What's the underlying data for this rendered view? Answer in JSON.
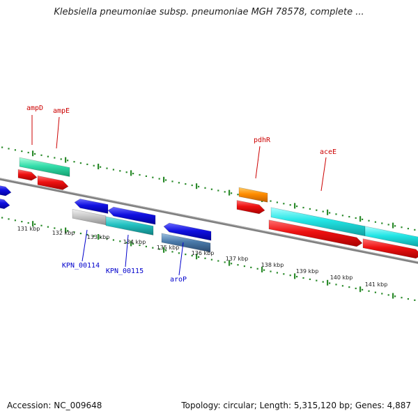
{
  "title": "Klebsiella pneumoniae subsp. pneumoniae MGH 78578, complete ...",
  "accession": "Accession: NC_009648",
  "summary": "Topology: circular; Length: 5,315,120 bp; Genes: 4,887",
  "ticks": [
    "131 kbp",
    "132 kbp",
    "133 kbp",
    "134 kbp",
    "135 kbp",
    "136 kbp",
    "137 kbp",
    "138 kbp",
    "139 kbp",
    "140 kbp",
    "141 kbp"
  ],
  "gene_labels_top": [
    "ampD",
    "ampE",
    "pdhR",
    "aceE"
  ],
  "gene_labels_bottom": [
    "KPN_00114",
    "KPN_00115",
    "aroP"
  ],
  "colors": {
    "backbone": "#808080",
    "tick_marks": "#2a8a2a",
    "label_top": "#cc0000",
    "label_bottom": "#0000cc",
    "blue": "#1010e0",
    "red": "#ee1111",
    "cyan": "#22dddd",
    "teal": "#22c0c0",
    "green": "#33ddaa",
    "orange": "#ff8c00",
    "gray": "#c8c8c8",
    "steel": "#4a7aaa"
  }
}
